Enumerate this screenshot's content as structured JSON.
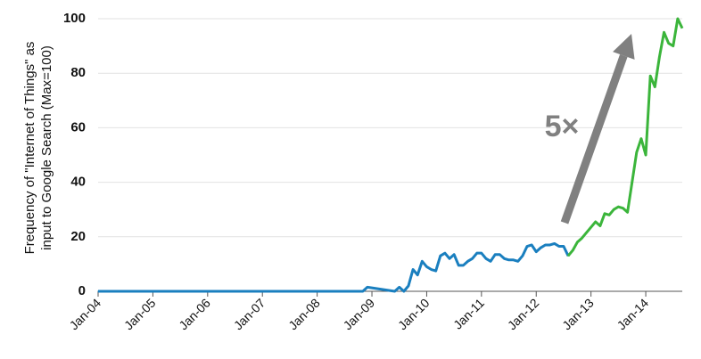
{
  "chart_data": {
    "type": "line",
    "title": "",
    "ylabel": [
      "Frequency of \"Internet of Things\" as",
      "input to Google Search (Max=100)"
    ],
    "xlabel": "",
    "ylim": [
      0,
      100
    ],
    "yticks": [
      "0",
      "20",
      "40",
      "60",
      "80",
      "100"
    ],
    "xticks": [
      "Jan-04",
      "Jan-05",
      "Jan-06",
      "Jan-07",
      "Jan-08",
      "Jan-09",
      "Jan-10",
      "Jan-11",
      "Jan-12",
      "Jan-13",
      "Jan-14"
    ],
    "grid": true,
    "annotation": "5×",
    "colors": {
      "history": "#1a7fbf",
      "growth": "#3bb53b",
      "arrow": "#808080"
    },
    "series": [
      {
        "key": "history",
        "x": [
          "2004-01",
          "2008-11",
          "2008-12",
          "2009-06",
          "2009-07",
          "2009-08",
          "2009-09",
          "2009-10",
          "2009-11",
          "2009-12",
          "2010-01",
          "2010-02",
          "2010-03",
          "2010-04",
          "2010-05",
          "2010-06",
          "2010-07",
          "2010-08",
          "2010-09",
          "2010-10",
          "2010-11",
          "2010-12",
          "2011-01",
          "2011-02",
          "2011-03",
          "2011-04",
          "2011-05",
          "2011-06",
          "2011-07",
          "2011-08",
          "2011-09",
          "2011-10",
          "2011-11",
          "2011-12",
          "2012-01",
          "2012-02",
          "2012-03",
          "2012-04",
          "2012-05",
          "2012-06",
          "2012-07",
          "2012-08"
        ],
        "values": [
          0,
          0,
          1.5,
          0,
          1.5,
          0,
          2,
          8,
          6,
          11,
          9,
          8,
          7.5,
          13,
          14,
          12,
          13.5,
          9.5,
          9.5,
          11,
          12,
          14,
          14,
          12,
          11,
          13.5,
          13.5,
          12,
          11.5,
          11.5,
          11,
          13,
          16.5,
          17,
          14.5,
          16,
          17,
          17,
          17.5,
          16.5,
          16.5,
          13
        ]
      },
      {
        "key": "growth",
        "x": [
          "2012-08",
          "2012-09",
          "2012-10",
          "2012-11",
          "2012-12",
          "2013-01",
          "2013-02",
          "2013-03",
          "2013-04",
          "2013-05",
          "2013-06",
          "2013-07",
          "2013-08",
          "2013-09",
          "2013-10",
          "2013-11",
          "2013-12",
          "2014-01",
          "2014-02",
          "2014-03",
          "2014-04",
          "2014-05",
          "2014-06",
          "2014-07",
          "2014-08"
        ],
        "values": [
          13,
          15,
          18,
          19.5,
          21.5,
          23.5,
          25.5,
          24,
          28.5,
          28,
          30,
          31,
          30.5,
          29,
          40,
          51,
          56,
          50,
          79,
          75,
          86,
          95,
          91,
          90,
          100
        ]
      }
    ],
    "x_last_value": "2014-09",
    "last_value": 96.5
  }
}
